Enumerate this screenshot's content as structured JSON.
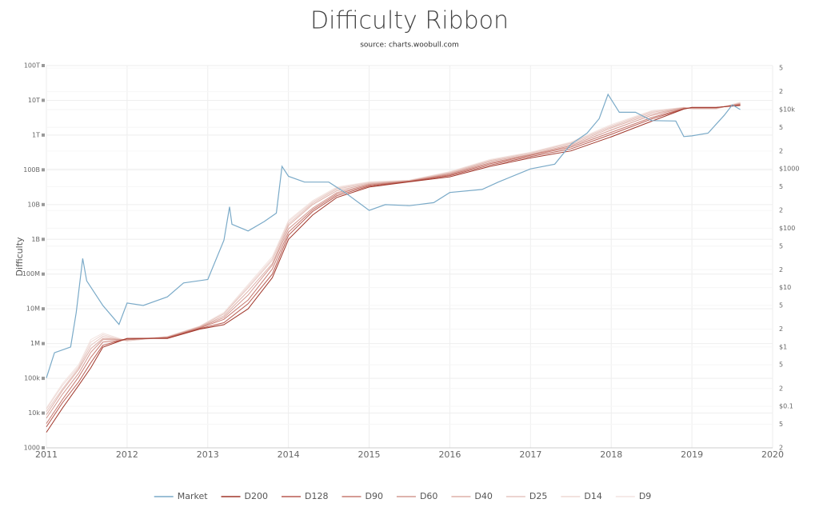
{
  "chart_data": {
    "type": "line",
    "title": "Difficulty Ribbon",
    "subtitle": "source: charts.woobull.com",
    "ylabel": "Difficulty",
    "log_scale": true,
    "grid": true,
    "legend": "bottom",
    "xlim": [
      2011,
      2020
    ],
    "xticks": [
      2011,
      2012,
      2013,
      2014,
      2015,
      2016,
      2017,
      2018,
      2019,
      2020
    ],
    "ylim": [
      1000,
      100000000000000
    ],
    "yticks": [
      1000,
      {
        "value": 10000,
        "label": "10k"
      },
      {
        "value": 100000,
        "label": "100k"
      },
      {
        "value": 1000000,
        "label": "1M"
      },
      {
        "value": 10000000,
        "label": "10M"
      },
      {
        "value": 100000000,
        "label": "100M"
      },
      {
        "value": 1000000000,
        "label": "1B"
      },
      {
        "value": 10000000000,
        "label": "10B"
      },
      {
        "value": 100000000000,
        "label": "100B"
      },
      {
        "value": 1000000000000,
        "label": "1T"
      },
      {
        "value": 10000000000000,
        "label": "10T"
      },
      {
        "value": 100000000000000,
        "label": "100T"
      }
    ],
    "y2lim": [
      0.02,
      55000
    ],
    "y2ticks": [
      {
        "value": 0.02,
        "label": "2"
      },
      {
        "value": 0.05,
        "label": "5"
      },
      {
        "value": 0.1,
        "label": "$0.1"
      },
      {
        "value": 0.2,
        "label": "2"
      },
      {
        "value": 0.5,
        "label": "5"
      },
      {
        "value": 1,
        "label": "$1"
      },
      2,
      5,
      {
        "value": 10,
        "label": "$10"
      },
      {
        "value": 20,
        "label": "2"
      },
      {
        "value": 50,
        "label": "5"
      },
      {
        "value": 100,
        "label": "$100"
      },
      {
        "value": 200,
        "label": "2"
      },
      {
        "value": 500,
        "label": "5"
      },
      {
        "value": 1000,
        "label": "$1000"
      },
      {
        "value": 2000,
        "label": "2"
      },
      {
        "value": 5000,
        "label": "5"
      },
      {
        "value": 10000,
        "label": "$10k"
      },
      {
        "value": 20000,
        "label": "2"
      },
      {
        "value": 50000,
        "label": "5"
      }
    ],
    "x": [
      2011.0,
      2011.2,
      2011.4,
      2011.55,
      2011.7,
      2012.0,
      2012.5,
      2012.9,
      2013.2,
      2013.5,
      2013.8,
      2014.0,
      2014.3,
      2014.6,
      2015.0,
      2015.5,
      2016.0,
      2016.5,
      2017.0,
      2017.5,
      2018.0,
      2018.5,
      2018.9,
      2019.0,
      2019.3,
      2019.6
    ],
    "series": [
      {
        "name": "Market",
        "color": "#7aaac8",
        "axis": "y2",
        "x": [
          2011.0,
          2011.1,
          2011.3,
          2011.37,
          2011.45,
          2011.5,
          2011.7,
          2011.9,
          2012.0,
          2012.2,
          2012.5,
          2012.7,
          2013.0,
          2013.2,
          2013.27,
          2013.3,
          2013.5,
          2013.7,
          2013.85,
          2013.92,
          2014.0,
          2014.2,
          2014.5,
          2014.7,
          2015.0,
          2015.2,
          2015.5,
          2015.8,
          2016.0,
          2016.4,
          2016.6,
          2017.0,
          2017.3,
          2017.5,
          2017.7,
          2017.85,
          2017.96,
          2018.1,
          2018.3,
          2018.5,
          2018.8,
          2018.9,
          2019.0,
          2019.2,
          2019.4,
          2019.5,
          2019.6
        ],
        "values": [
          0.3,
          0.8,
          1,
          3.8,
          31,
          13,
          5,
          2.4,
          5.5,
          5,
          7,
          12,
          13.7,
          63,
          230,
          117,
          90,
          130,
          180,
          1100,
          750,
          600,
          600,
          400,
          200,
          250,
          240,
          270,
          400,
          450,
          600,
          1000,
          1200,
          2600,
          4000,
          7000,
          18000,
          9000,
          9000,
          6500,
          6400,
          3500,
          3600,
          4000,
          8000,
          12000,
          10000
        ]
      },
      {
        "name": "D200",
        "color": "#a0362a",
        "values": [
          2800.0,
          14000.0,
          63000.0,
          200000.0,
          790000.0,
          1400000.0,
          1400000.0,
          2600000.0,
          3500000.0,
          10000000.0,
          79000000.0,
          1000000000.0,
          5000000000.0,
          16000000000.0,
          32000000000.0,
          45000000000.0,
          63000000000.0,
          126000000000.0,
          220000000000.0,
          350000000000.0,
          890000000000.0,
          2500000000000.0,
          5600000000000.0,
          6300000000000.0,
          6300000000000.0,
          7100000000000.0
        ]
      },
      {
        "name": "D128",
        "color": "#b85a50",
        "values": [
          4000.0,
          20000.0,
          79000.0,
          280000.0,
          890000.0,
          1400000.0,
          1450000.0,
          2700000.0,
          4000000.0,
          14000000.0,
          100000000.0,
          1300000000.0,
          6300000000.0,
          18000000000.0,
          34000000000.0,
          46000000000.0,
          68000000000.0,
          138000000000.0,
          240000000000.0,
          400000000000.0,
          1050000000000.0,
          2900000000000.0,
          5700000000000.0,
          6200000000000.0,
          6200000000000.0,
          7300000000000.0
        ]
      },
      {
        "name": "D90",
        "color": "#c77a70",
        "values": [
          5000.0,
          25000.0,
          110000.0,
          400000.0,
          1100000.0,
          1300000.0,
          1500000.0,
          2800000.0,
          5000000.0,
          18000000.0,
          140000000.0,
          1600000000.0,
          7100000000.0,
          20000000000.0,
          36000000000.0,
          47000000000.0,
          72000000000.0,
          150000000000.0,
          260000000000.0,
          450000000000.0,
          1200000000000.0,
          3200000000000.0,
          5800000000000.0,
          6100000000000.0,
          6100000000000.0,
          7600000000000.0
        ]
      },
      {
        "name": "D60",
        "color": "#d49a92",
        "values": [
          7100.0,
          35000.0,
          140000.0,
          560000.0,
          1300000.0,
          1300000.0,
          1500000.0,
          2900000.0,
          5600000.0,
          25000000.0,
          180000000.0,
          2000000000.0,
          7900000000.0,
          22000000000.0,
          38000000000.0,
          48000000000.0,
          76000000000.0,
          160000000000.0,
          270000000000.0,
          490000000000.0,
          1400000000000.0,
          3700000000000.0,
          6000000000000.0,
          6000000000000.0,
          6000000000000.0,
          7900000000000.0
        ]
      },
      {
        "name": "D40",
        "color": "#ddb0a8",
        "values": [
          8900.0,
          45000.0,
          180000.0,
          710000.0,
          1400000.0,
          1300000.0,
          1550000.0,
          3000000.0,
          6300000.0,
          32000000.0,
          200000000.0,
          2500000000.0,
          10000000000.0,
          25000000000.0,
          40000000000.0,
          48000000000.0,
          79000000000.0,
          174000000000.0,
          280000000000.0,
          530000000000.0,
          1600000000000.0,
          4100000000000.0,
          6100000000000.0,
          5900000000000.0,
          5900000000000.0,
          8100000000000.0
        ]
      },
      {
        "name": "D25",
        "color": "#e6c6c0",
        "values": [
          11000.0,
          50000.0,
          200000.0,
          890000.0,
          1600000.0,
          1200000.0,
          1550000.0,
          3100000.0,
          7100000.0,
          40000000.0,
          250000000.0,
          2800000000.0,
          11000000000.0,
          28000000000.0,
          42000000000.0,
          49000000000.0,
          83000000000.0,
          186000000000.0,
          300000000000.0,
          580000000000.0,
          1740000000000.0,
          4500000000000.0,
          6200000000000.0,
          5800000000000.0,
          5800000000000.0,
          8300000000000.0
        ]
      },
      {
        "name": "D14",
        "color": "#eed8d4",
        "values": [
          13000.0,
          63000.0,
          220000.0,
          1100000.0,
          1800000.0,
          1200000.0,
          1600000.0,
          3100000.0,
          7400000.0,
          45000000.0,
          280000000.0,
          3200000000.0,
          12000000000.0,
          30000000000.0,
          44000000000.0,
          50000000000.0,
          87000000000.0,
          190000000000.0,
          310000000000.0,
          600000000000.0,
          1860000000000.0,
          4800000000000.0,
          6300000000000.0,
          5700000000000.0,
          5700000000000.0,
          8600000000000.0
        ]
      },
      {
        "name": "D9",
        "color": "#f3e4e0",
        "values": [
          14000.0,
          71000.0,
          250000.0,
          1300000.0,
          2000000.0,
          1200000.0,
          1600000.0,
          3200000.0,
          7900000.0,
          50000000.0,
          320000000.0,
          3500000000.0,
          13000000000.0,
          32000000000.0,
          45000000000.0,
          50000000000.0,
          89000000000.0,
          200000000000.0,
          320000000000.0,
          630000000000.0,
          2000000000000.0,
          5000000000000.0,
          6300000000000.0,
          5600000000000.0,
          5600000000000.0,
          8900000000000.0
        ]
      }
    ]
  }
}
